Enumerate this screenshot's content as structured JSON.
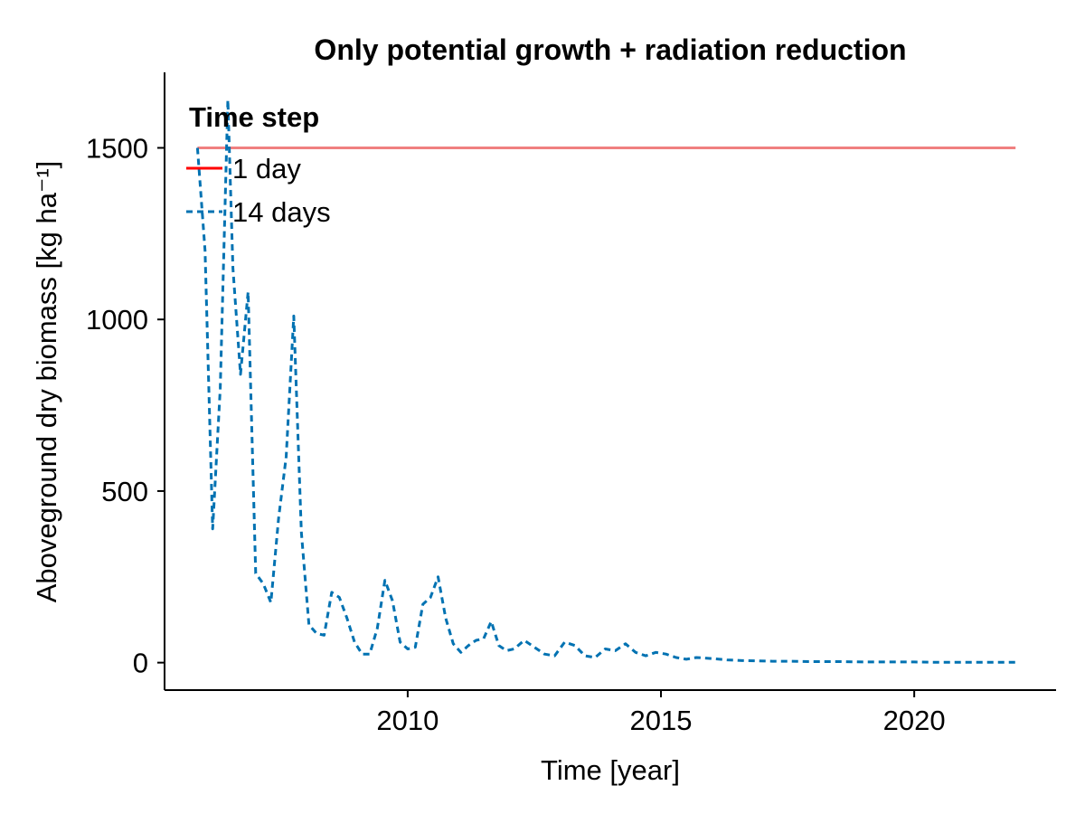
{
  "chart_data": {
    "type": "line",
    "title": "Only potential growth + radiation reduction",
    "xlabel": "Time [year]",
    "ylabel": "Aboveground dry biomass [kg ha⁻¹]",
    "xlim": [
      2005.2,
      2022.8
    ],
    "ylim": [
      -80,
      1720
    ],
    "xticks": [
      2010,
      2015,
      2020
    ],
    "yticks": [
      0,
      500,
      1000,
      1500
    ],
    "grid": false,
    "legend": {
      "title": "Time step",
      "placement": "top-left"
    },
    "series": [
      {
        "name": "1 day",
        "color": "#f08080",
        "legend_color": "#ff0000",
        "style": "solid",
        "x": [
          2005.85,
          2022.0
        ],
        "y": [
          1500,
          1500
        ]
      },
      {
        "name": "14 days",
        "color": "#0072b2",
        "style": "dashed",
        "x": [
          2005.85,
          2006.0,
          2006.15,
          2006.3,
          2006.45,
          2006.55,
          2006.7,
          2006.85,
          2007.0,
          2007.15,
          2007.3,
          2007.45,
          2007.6,
          2007.75,
          2007.9,
          2008.05,
          2008.2,
          2008.35,
          2008.5,
          2008.65,
          2008.8,
          2008.95,
          2009.1,
          2009.25,
          2009.4,
          2009.55,
          2009.7,
          2009.85,
          2010.0,
          2010.15,
          2010.3,
          2010.45,
          2010.6,
          2010.75,
          2010.9,
          2011.05,
          2011.2,
          2011.35,
          2011.5,
          2011.65,
          2011.8,
          2011.95,
          2012.1,
          2012.3,
          2012.5,
          2012.7,
          2012.9,
          2013.1,
          2013.3,
          2013.5,
          2013.7,
          2013.9,
          2014.1,
          2014.3,
          2014.5,
          2014.7,
          2014.9,
          2015.1,
          2015.3,
          2015.5,
          2015.7,
          2016.0,
          2016.3,
          2016.6,
          2016.9,
          2017.2,
          2017.5,
          2018.0,
          2018.5,
          2019.0,
          2019.5,
          2020.0,
          2020.5,
          2021.0,
          2021.5,
          2022.0
        ],
        "y": [
          1500,
          1200,
          390,
          800,
          1640,
          1150,
          840,
          1080,
          260,
          230,
          175,
          420,
          600,
          1010,
          380,
          110,
          85,
          80,
          205,
          190,
          130,
          60,
          25,
          25,
          100,
          240,
          180,
          60,
          40,
          45,
          170,
          190,
          250,
          130,
          55,
          30,
          50,
          65,
          70,
          120,
          50,
          35,
          40,
          65,
          45,
          25,
          20,
          60,
          50,
          20,
          15,
          40,
          35,
          55,
          30,
          20,
          30,
          25,
          15,
          10,
          15,
          12,
          8,
          6,
          5,
          4,
          4,
          3,
          3,
          2,
          2,
          2,
          1,
          1,
          1,
          1
        ]
      }
    ]
  }
}
